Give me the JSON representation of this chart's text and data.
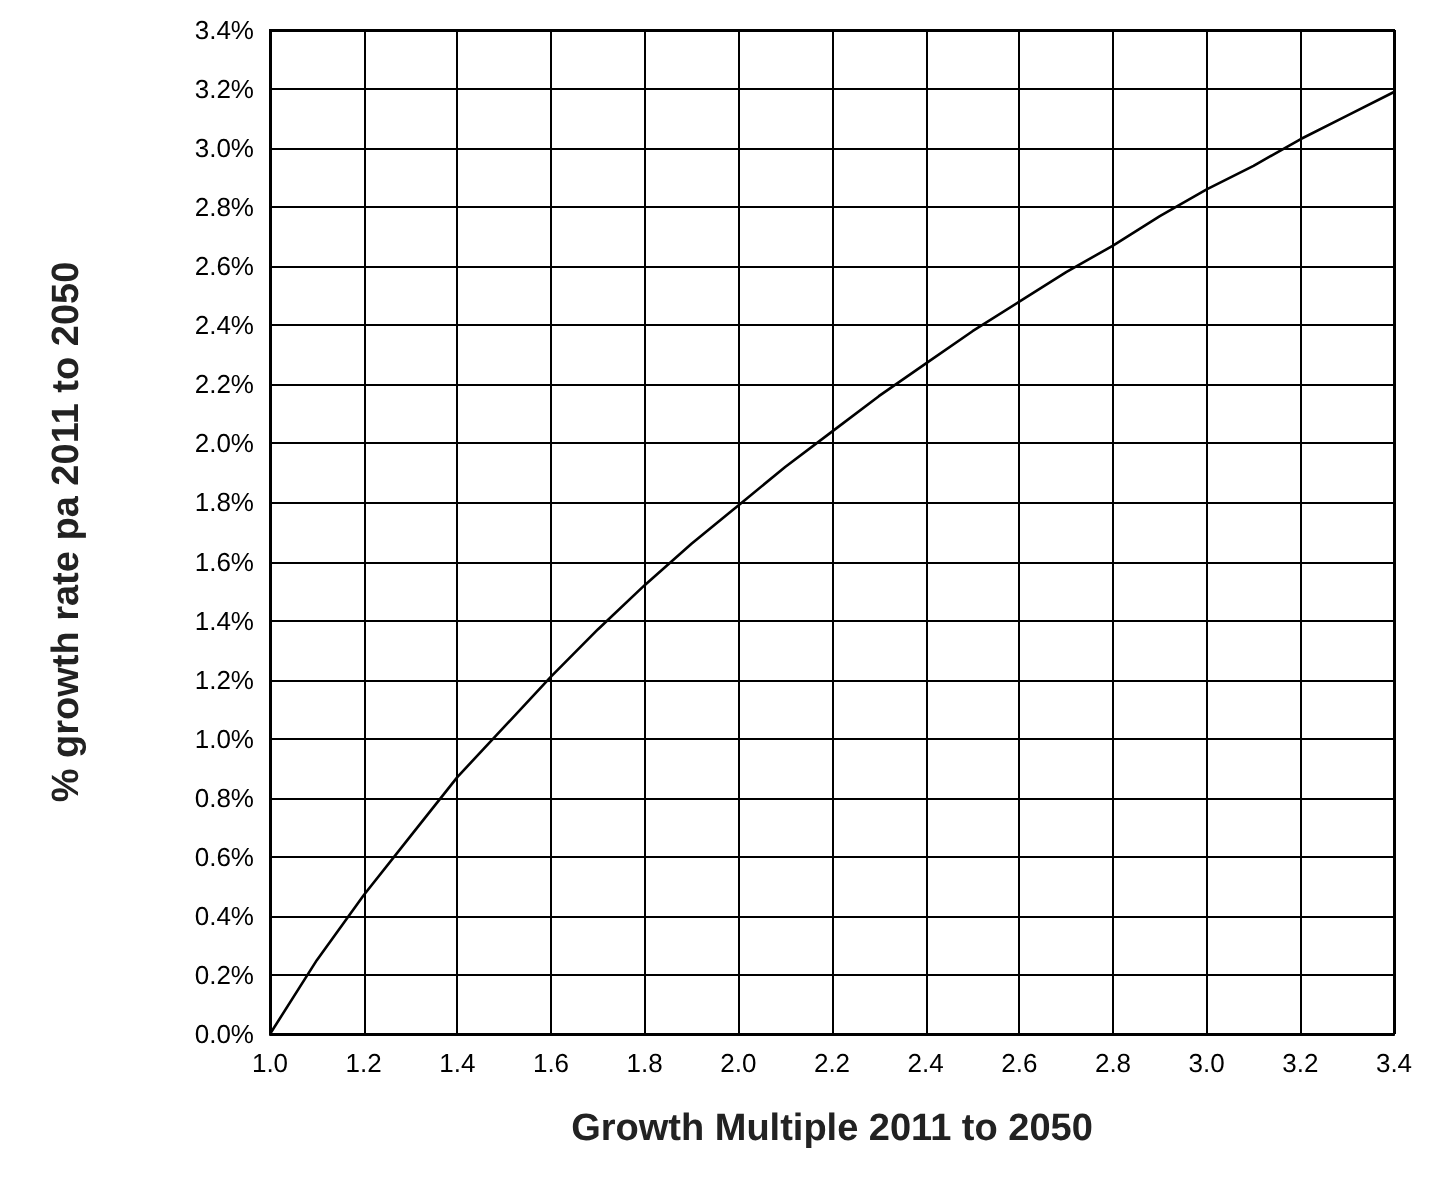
{
  "chart_data": {
    "type": "line",
    "xlabel": "Growth Multiple 2011 to 2050",
    "ylabel": "% growth rate pa 2011 to 2050",
    "x": [
      1.0,
      1.1,
      1.2,
      1.3,
      1.4,
      1.5,
      1.6,
      1.7,
      1.8,
      1.9,
      2.0,
      2.1,
      2.2,
      2.3,
      2.4,
      2.5,
      2.6,
      2.7,
      2.8,
      2.9,
      3.0,
      3.1,
      3.2,
      3.3,
      3.4
    ],
    "series": [
      {
        "color": "#000000",
        "values": [
          0,
          0.25,
          0.47,
          0.67,
          0.87,
          1.04,
          1.21,
          1.37,
          1.52,
          1.66,
          1.79,
          1.92,
          2.04,
          2.16,
          2.27,
          2.38,
          2.48,
          2.58,
          2.67,
          2.77,
          2.86,
          2.94,
          3.03,
          3.11,
          3.19
        ]
      }
    ],
    "xlim": [
      1.0,
      3.4
    ],
    "ylim": [
      0,
      3.4
    ],
    "xticks": [
      {
        "value": 1.0,
        "label": "1.0"
      },
      {
        "value": 1.2,
        "label": "1.2"
      },
      {
        "value": 1.4,
        "label": "1.4"
      },
      {
        "value": 1.6,
        "label": "1.6"
      },
      {
        "value": 1.8,
        "label": "1.8"
      },
      {
        "value": 2.0,
        "label": "2.0"
      },
      {
        "value": 2.2,
        "label": "2.2"
      },
      {
        "value": 2.4,
        "label": "2.4"
      },
      {
        "value": 2.6,
        "label": "2.6"
      },
      {
        "value": 2.8,
        "label": "2.8"
      },
      {
        "value": 3.0,
        "label": "3.0"
      },
      {
        "value": 3.2,
        "label": "3.2"
      },
      {
        "value": 3.4,
        "label": "3.4"
      }
    ],
    "yticks": [
      {
        "value": 0,
        "label": "0.0%"
      },
      {
        "value": 0.2,
        "label": "0.2%"
      },
      {
        "value": 0.4,
        "label": "0.4%"
      },
      {
        "value": 0.6,
        "label": "0.6%"
      },
      {
        "value": 0.8,
        "label": "0.8%"
      },
      {
        "value": 1.0,
        "label": "1.0%"
      },
      {
        "value": 1.2,
        "label": "1.2%"
      },
      {
        "value": 1.4,
        "label": "1.4%"
      },
      {
        "value": 1.6,
        "label": "1.6%"
      },
      {
        "value": 1.8,
        "label": "1.8%"
      },
      {
        "value": 2.0,
        "label": "2.0%"
      },
      {
        "value": 2.2,
        "label": "2.2%"
      },
      {
        "value": 2.4,
        "label": "2.4%"
      },
      {
        "value": 2.6,
        "label": "2.6%"
      },
      {
        "value": 2.8,
        "label": "2.8%"
      },
      {
        "value": 3.0,
        "label": "3.0%"
      },
      {
        "value": 3.2,
        "label": "3.2%"
      },
      {
        "value": 3.4,
        "label": "3.4%"
      }
    ],
    "grid": true,
    "marker": "none",
    "line_style": "solid"
  }
}
